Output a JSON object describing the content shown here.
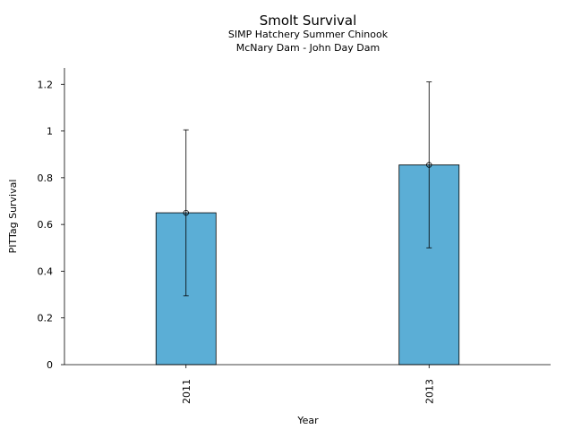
{
  "chart_data": {
    "type": "bar",
    "title": "Smolt Survival",
    "subtitle_lines": [
      "SIMP Hatchery Summer Chinook",
      "McNary Dam - John Day Dam"
    ],
    "xlabel": "Year",
    "ylabel": "PITTag Survival",
    "categories": [
      "2011",
      "2013"
    ],
    "values": [
      0.65,
      0.855
    ],
    "error_low": [
      0.295,
      0.5
    ],
    "error_high": [
      1.005,
      1.21
    ],
    "ylim": [
      0,
      1.27
    ],
    "yticks": [
      0,
      0.2,
      0.4,
      0.6,
      0.8,
      1,
      1.2
    ],
    "ytick_labels": [
      "0",
      "0.2",
      "0.4",
      "0.6",
      "0.8",
      "1",
      "1.2"
    ],
    "grid": false,
    "bar_color": "#5BAED6",
    "edge_color": "#000000"
  }
}
